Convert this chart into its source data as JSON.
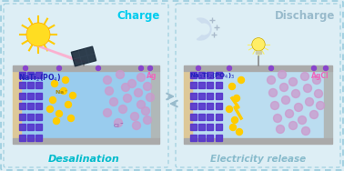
{
  "bg_color": "#ddeef5",
  "outer_border_color": "#99ccdd",
  "left_panel": {
    "title_top": "Charge",
    "title_bottom": "Desalination",
    "title_color_top": "#00ccee",
    "title_color_bottom": "#00bbcc",
    "label_left": "NaTi$_2$(PO$_4$)",
    "label_right": "Ag",
    "label_color_left": "#2222bb",
    "label_color_right": "#ee66bb",
    "box_bg": "#99ccee",
    "electrode_left_color": "#ddc898",
    "electrode_right_color": "#b0b8b8"
  },
  "right_panel": {
    "title_top": "Discharge",
    "title_bottom": "Electricity release",
    "title_color_top": "#99bbcc",
    "title_color_bottom": "#88bbcc",
    "label_left": "Na$_3$Ti$_2$(PO$_4$)$_3$",
    "label_right": "AgCl",
    "label_color_left": "#2222bb",
    "label_color_right": "#ee66bb",
    "box_bg": "#bbddf0",
    "electrode_left_color": "#ddc898",
    "electrode_right_color": "#b0b8b8"
  },
  "arrow_color": "#99bbcc",
  "crystal_color": "#5533cc",
  "na_ion_color": "#ffcc00",
  "cl_ion_color": "#cc99cc",
  "frame_bar_color": "#aaaaaa",
  "top_connector_color": "#888888",
  "dot_color": "#8844cc"
}
